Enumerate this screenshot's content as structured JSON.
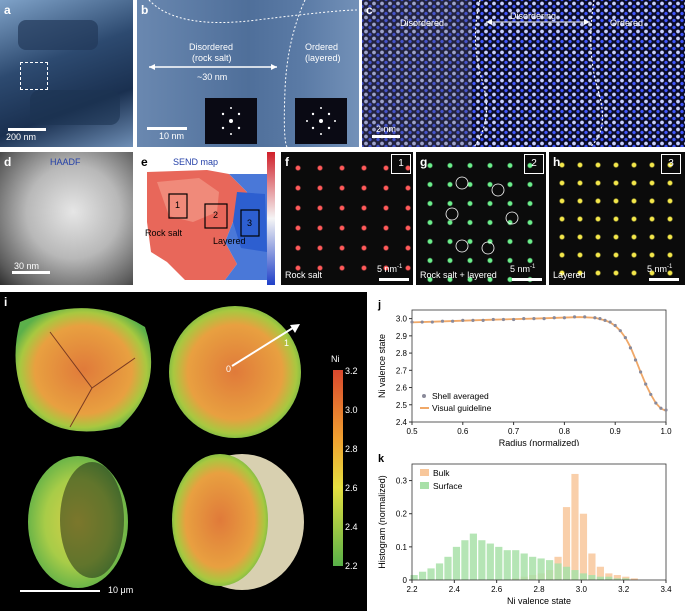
{
  "figure": {
    "panel_letters": [
      "a",
      "b",
      "c",
      "d",
      "e",
      "f",
      "g",
      "h",
      "i",
      "j",
      "k"
    ],
    "a": {
      "scale": "200 nm"
    },
    "b": {
      "disordered": "Disordered",
      "rock_salt": "(rock salt)",
      "distance": "~30 nm",
      "ordered": "Ordered",
      "layered": "(layered)",
      "scale": "10 nm"
    },
    "c": {
      "disordered": "Disordered",
      "disordering": "Disordering",
      "ordered": "Ordered",
      "scale": "2 nm"
    },
    "d": {
      "title": "HAADF",
      "scale": "30 nm"
    },
    "e": {
      "title": "SEND map",
      "rock_salt": "Rock salt",
      "layered": "Layered",
      "boxes": [
        "1",
        "2",
        "3"
      ]
    },
    "f": {
      "label": "Rock salt",
      "box": "1",
      "scale": "5 nm",
      "scale_sup": "-1"
    },
    "g": {
      "label": "Rock salt + layered",
      "box": "2",
      "scale": "5 nm",
      "scale_sup": "-1"
    },
    "h": {
      "label": "Layered",
      "box": "3",
      "scale": "5 nm",
      "scale_sup": "-1"
    },
    "i": {
      "colorbar_title": "Ni",
      "colorbar_ticks": [
        "3.2",
        "3.0",
        "2.8",
        "2.6",
        "2.4",
        "2.2"
      ],
      "scale": "10 μm",
      "arrow_start": "0",
      "arrow_end": "1"
    }
  },
  "colors": {
    "ordered_blue": "#1f2fd0",
    "rock_salt_red": "#e04c3c",
    "layered_blue": "#4a78d8",
    "bulk": "#f8c79b",
    "surface": "#a8e0a8",
    "shell_points": "#8a8a9a",
    "guide_line": "#f0a868"
  },
  "chart_data": [
    {
      "type": "line",
      "panel": "j",
      "xlabel": "Radius (normalized)",
      "ylabel": "Ni valence state",
      "xlim": [
        0.5,
        1.0
      ],
      "ylim": [
        2.4,
        3.05
      ],
      "xticks": [
        "0.5",
        "0.6",
        "0.7",
        "0.8",
        "0.9",
        "1.0"
      ],
      "yticks": [
        "2.4",
        "2.5",
        "2.6",
        "2.7",
        "2.8",
        "2.9",
        "3.0"
      ],
      "legend": [
        "Shell averaged",
        "Visual guideline"
      ],
      "legend_position": "bottom-left",
      "series": [
        {
          "name": "Shell averaged",
          "style": "points",
          "x": [
            0.5,
            0.52,
            0.54,
            0.56,
            0.58,
            0.6,
            0.62,
            0.64,
            0.66,
            0.68,
            0.7,
            0.72,
            0.74,
            0.76,
            0.78,
            0.8,
            0.82,
            0.84,
            0.86,
            0.87,
            0.88,
            0.89,
            0.9,
            0.91,
            0.92,
            0.93,
            0.94,
            0.95,
            0.96,
            0.97,
            0.98,
            0.99,
            1.0
          ],
          "y": [
            2.98,
            2.98,
            2.98,
            2.985,
            2.985,
            2.99,
            2.99,
            2.99,
            2.995,
            2.995,
            2.995,
            3.0,
            3.0,
            3.0,
            3.005,
            3.005,
            3.01,
            3.01,
            3.005,
            3.0,
            2.99,
            2.98,
            2.96,
            2.93,
            2.89,
            2.83,
            2.76,
            2.69,
            2.62,
            2.56,
            2.51,
            2.48,
            2.47
          ]
        },
        {
          "name": "Visual guideline",
          "style": "line",
          "x": [
            0.5,
            0.55,
            0.6,
            0.65,
            0.7,
            0.75,
            0.8,
            0.83,
            0.86,
            0.88,
            0.89,
            0.9,
            0.91,
            0.92,
            0.93,
            0.94,
            0.95,
            0.96,
            0.97,
            0.98,
            0.99,
            1.0
          ],
          "y": [
            2.978,
            2.983,
            2.988,
            2.993,
            2.997,
            3.001,
            3.006,
            3.009,
            3.005,
            2.99,
            2.978,
            2.958,
            2.93,
            2.89,
            2.835,
            2.765,
            2.69,
            2.62,
            2.56,
            2.51,
            2.478,
            2.465
          ]
        }
      ]
    },
    {
      "type": "bar",
      "panel": "k",
      "xlabel": "Ni valence state",
      "ylabel": "Histogram (normalized)",
      "xlim": [
        2.2,
        3.4
      ],
      "ylim": [
        0,
        0.35
      ],
      "xticks": [
        "2.2",
        "2.4",
        "2.6",
        "2.8",
        "3.0",
        "3.2",
        "3.4"
      ],
      "yticks": [
        "0",
        "0.1",
        "0.2",
        "0.3"
      ],
      "legend": [
        "Bulk",
        "Surface"
      ],
      "legend_position": "top-left",
      "categories": [
        2.21,
        2.25,
        2.29,
        2.33,
        2.37,
        2.41,
        2.45,
        2.49,
        2.53,
        2.57,
        2.61,
        2.65,
        2.69,
        2.73,
        2.77,
        2.81,
        2.85,
        2.89,
        2.93,
        2.97,
        3.01,
        3.05,
        3.09,
        3.13,
        3.17,
        3.21,
        3.25,
        3.29
      ],
      "series": [
        {
          "name": "Bulk",
          "values": [
            0,
            0,
            0,
            0,
            0,
            0,
            0,
            0,
            0,
            0,
            0,
            0,
            0.005,
            0.01,
            0.015,
            0.02,
            0.03,
            0.07,
            0.22,
            0.32,
            0.2,
            0.08,
            0.04,
            0.02,
            0.015,
            0.01,
            0.005,
            0
          ]
        },
        {
          "name": "Surface",
          "values": [
            0.015,
            0.025,
            0.035,
            0.05,
            0.07,
            0.1,
            0.12,
            0.14,
            0.12,
            0.11,
            0.1,
            0.09,
            0.09,
            0.08,
            0.07,
            0.065,
            0.06,
            0.05,
            0.04,
            0.03,
            0.02,
            0.015,
            0.01,
            0.01,
            0.005,
            0.005,
            0,
            0
          ]
        }
      ]
    }
  ]
}
